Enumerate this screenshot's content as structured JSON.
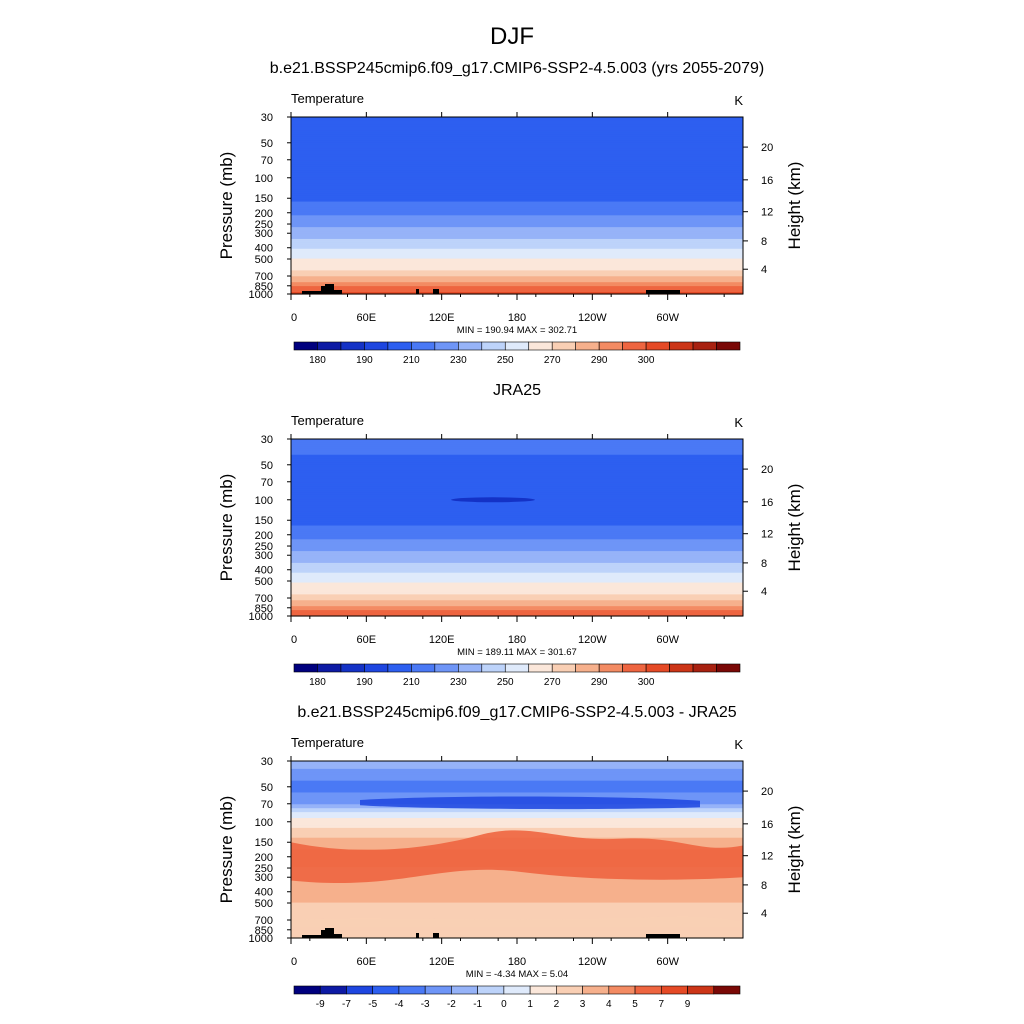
{
  "title": "DJF",
  "colors": {
    "temp": [
      "#00007e",
      "#0d1aa4",
      "#1432c6",
      "#1e46e0",
      "#2d5ff0",
      "#4a79f5",
      "#6e95f7",
      "#96b3f8",
      "#bdd3fa",
      "#dfeafb",
      "#fbe7da",
      "#f9cfb4",
      "#f6b08c",
      "#f38b63",
      "#ee6540",
      "#e54a26",
      "#cc3517",
      "#a82110",
      "#7a0806"
    ],
    "diff": [
      "#00007e",
      "#0d1aa4",
      "#1e46e0",
      "#2d5ff0",
      "#4a79f5",
      "#6e95f7",
      "#96b3f8",
      "#bdd3fa",
      "#dfeafb",
      "#fbe7da",
      "#f9cfb4",
      "#f6b08c",
      "#f38b63",
      "#ee6540",
      "#e54a26",
      "#cc3517",
      "#7a0806"
    ]
  },
  "chart_data": [
    {
      "type": "heatmap",
      "panel": "model",
      "title": "b.e21.BSSP245cmip6.f09_g17.CMIP6-SSP2-4.5.003 (yrs 2055-2079)",
      "left_label": "Temperature",
      "units": "K",
      "ylabel": "Pressure (mb)",
      "ylabel_right": "Height (km)",
      "pressure_ticks": [
        "30",
        "50",
        "70",
        "100",
        "150",
        "200",
        "250",
        "300",
        "400",
        "500",
        "700",
        "850",
        "1000"
      ],
      "height_ticks": [
        "20",
        "16",
        "12",
        "8",
        "4"
      ],
      "x_ticks": [
        "0",
        "60E",
        "120E",
        "180",
        "120W",
        "60W"
      ],
      "min_max": "MIN = 190.94  MAX = 302.71",
      "colorbar_labels": [
        "180",
        "190",
        "210",
        "230",
        "250",
        "270",
        "290",
        "300"
      ],
      "profile": [
        {
          "p": 30,
          "t": 207
        },
        {
          "p": 50,
          "t": 203
        },
        {
          "p": 70,
          "t": 201
        },
        {
          "p": 100,
          "t": 202
        },
        {
          "p": 150,
          "t": 208
        },
        {
          "p": 200,
          "t": 218
        },
        {
          "p": 250,
          "t": 227
        },
        {
          "p": 300,
          "t": 235
        },
        {
          "p": 400,
          "t": 249
        },
        {
          "p": 500,
          "t": 260
        },
        {
          "p": 700,
          "t": 275
        },
        {
          "p": 850,
          "t": 284
        },
        {
          "p": 1000,
          "t": 292
        }
      ]
    },
    {
      "type": "heatmap",
      "panel": "obs",
      "title": "JRA25",
      "left_label": "Temperature",
      "units": "K",
      "ylabel": "Pressure (mb)",
      "ylabel_right": "Height (km)",
      "pressure_ticks": [
        "30",
        "50",
        "70",
        "100",
        "150",
        "200",
        "250",
        "300",
        "400",
        "500",
        "700",
        "850",
        "1000"
      ],
      "height_ticks": [
        "20",
        "16",
        "12",
        "8",
        "4"
      ],
      "x_ticks": [
        "0",
        "60E",
        "120E",
        "180",
        "120W",
        "60W"
      ],
      "min_max": "MIN = 189.11  MAX = 301.67",
      "colorbar_labels": [
        "180",
        "190",
        "210",
        "230",
        "250",
        "270",
        "290",
        "300"
      ],
      "profile": [
        {
          "p": 30,
          "t": 213
        },
        {
          "p": 50,
          "t": 208
        },
        {
          "p": 70,
          "t": 203
        },
        {
          "p": 100,
          "t": 200
        },
        {
          "p": 150,
          "t": 206
        },
        {
          "p": 200,
          "t": 216
        },
        {
          "p": 250,
          "t": 225
        },
        {
          "p": 300,
          "t": 234
        },
        {
          "p": 400,
          "t": 247
        },
        {
          "p": 500,
          "t": 258
        },
        {
          "p": 700,
          "t": 273
        },
        {
          "p": 850,
          "t": 282
        },
        {
          "p": 1000,
          "t": 290
        }
      ]
    },
    {
      "type": "heatmap",
      "panel": "diff",
      "title": "b.e21.BSSP245cmip6.f09_g17.CMIP6-SSP2-4.5.003 - JRA25",
      "left_label": "Temperature",
      "units": "K",
      "ylabel": "Pressure (mb)",
      "ylabel_right": "Height (km)",
      "pressure_ticks": [
        "30",
        "50",
        "70",
        "100",
        "150",
        "200",
        "250",
        "300",
        "400",
        "500",
        "700",
        "850",
        "1000"
      ],
      "height_ticks": [
        "20",
        "16",
        "12",
        "8",
        "4"
      ],
      "x_ticks": [
        "0",
        "60E",
        "120E",
        "180",
        "120W",
        "60W"
      ],
      "min_max": "MIN =  -4.34  MAX =   5.04",
      "colorbar_labels": [
        "-9",
        "-7",
        "-5",
        "-4",
        "-3",
        "-2",
        "-1",
        "0",
        "1",
        "2",
        "3",
        "4",
        "5",
        "7",
        "9"
      ],
      "profile": [
        {
          "p": 30,
          "t": -1.5
        },
        {
          "p": 40,
          "t": -2.5
        },
        {
          "p": 50,
          "t": -3.5
        },
        {
          "p": 70,
          "t": -2.0
        },
        {
          "p": 85,
          "t": 0.5
        },
        {
          "p": 100,
          "t": 1.5
        },
        {
          "p": 150,
          "t": 3.5
        },
        {
          "p": 200,
          "t": 4.5
        },
        {
          "p": 300,
          "t": 3.6
        },
        {
          "p": 400,
          "t": 3.5
        },
        {
          "p": 500,
          "t": 3.0
        },
        {
          "p": 700,
          "t": 2.6
        },
        {
          "p": 850,
          "t": 2.3
        },
        {
          "p": 1000,
          "t": 2.5
        }
      ]
    }
  ]
}
